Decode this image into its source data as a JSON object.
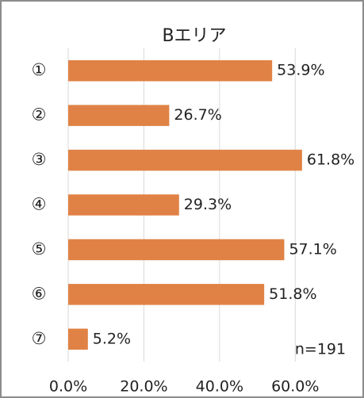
{
  "chart_data": {
    "type": "bar",
    "orientation": "horizontal",
    "title": "Bエリア",
    "categories": [
      "①",
      "②",
      "③",
      "④",
      "⑤",
      "⑥",
      "⑦"
    ],
    "values": [
      53.9,
      26.7,
      61.8,
      29.3,
      57.1,
      51.8,
      5.2
    ],
    "value_labels": [
      "53.9%",
      "26.7%",
      "61.8%",
      "29.3%",
      "57.1%",
      "51.8%",
      "5.2%"
    ],
    "color": "#e08245",
    "xlim": [
      0,
      70
    ],
    "xticks": [
      {
        "value": 0,
        "label": "0.0%"
      },
      {
        "value": 20,
        "label": "20.0%"
      },
      {
        "value": 40,
        "label": "40.0%"
      },
      {
        "value": 60,
        "label": "60.0%"
      }
    ],
    "grid": true,
    "annotation": "n=191"
  }
}
